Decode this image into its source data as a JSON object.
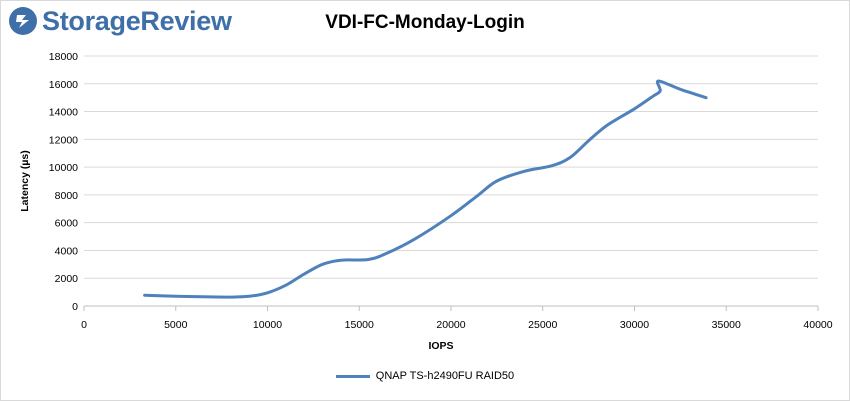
{
  "brand": {
    "name": "StorageReview",
    "icon": "storagereview-logo-icon",
    "color": "#3e6fa8"
  },
  "chart_data": {
    "type": "line",
    "title": "VDI-FC-Monday-Login",
    "xlabel": "IOPS",
    "ylabel": "Latency (µs)",
    "xlim": [
      0,
      40000
    ],
    "ylim": [
      0,
      18000
    ],
    "xticks": [
      0,
      5000,
      10000,
      15000,
      20000,
      25000,
      30000,
      35000,
      40000
    ],
    "yticks": [
      0,
      2000,
      4000,
      6000,
      8000,
      10000,
      12000,
      14000,
      16000,
      18000
    ],
    "grid": "horizontal",
    "legend_position": "bottom",
    "series": [
      {
        "name": "QNAP TS-h2490FU RAID50",
        "color": "#4f81bd",
        "points": [
          [
            3300,
            780
          ],
          [
            5000,
            700
          ],
          [
            6500,
            660
          ],
          [
            8000,
            640
          ],
          [
            9000,
            700
          ],
          [
            10000,
            950
          ],
          [
            11000,
            1500
          ],
          [
            12000,
            2300
          ],
          [
            13000,
            3000
          ],
          [
            14000,
            3300
          ],
          [
            15500,
            3350
          ],
          [
            16500,
            3800
          ],
          [
            18000,
            4800
          ],
          [
            20000,
            6500
          ],
          [
            21500,
            8000
          ],
          [
            22500,
            9000
          ],
          [
            24000,
            9700
          ],
          [
            25500,
            10100
          ],
          [
            26500,
            10700
          ],
          [
            27500,
            11900
          ],
          [
            28500,
            13000
          ],
          [
            30000,
            14200
          ],
          [
            31000,
            15100
          ],
          [
            31400,
            15500
          ],
          [
            31300,
            16200
          ],
          [
            32500,
            15600
          ],
          [
            33900,
            15000
          ]
        ]
      }
    ]
  }
}
